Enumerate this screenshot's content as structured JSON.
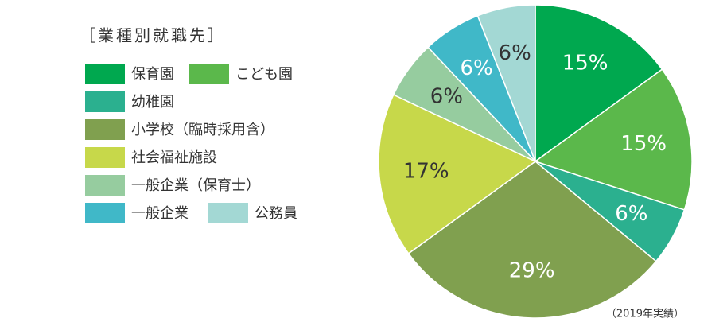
{
  "chart_data": {
    "type": "pie",
    "legend_title": "［業種別就職先］",
    "categories": [
      "保育園",
      "こども園",
      "幼稚園",
      "小学校（臨時採用含）",
      "社会福祉施設",
      "一般企業（保育士）",
      "一般企業",
      "公務員"
    ],
    "values": [
      15,
      15,
      6,
      29,
      17,
      6,
      6,
      6
    ],
    "value_labels": [
      "15%",
      "15%",
      "6%",
      "29%",
      "17%",
      "6%",
      "6%",
      "6%"
    ],
    "colors": [
      "#00a84f",
      "#5bb84b",
      "#2bb08f",
      "#80a04f",
      "#c7d84a",
      "#96cc9f",
      "#40b8c8",
      "#a3d8d4"
    ],
    "note": "（2019年実績）"
  }
}
